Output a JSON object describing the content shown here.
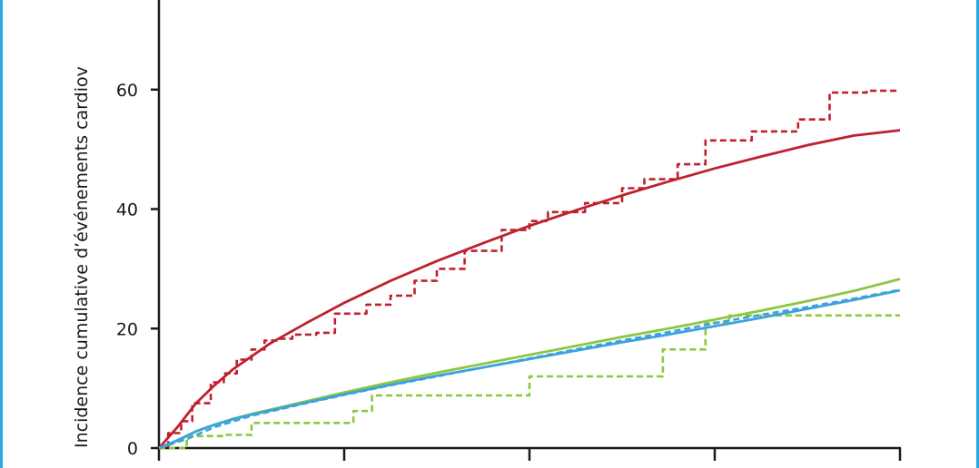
{
  "chart_data": {
    "type": "line",
    "title": "",
    "xlabel": "",
    "ylabel": "Incidence cumulative d’événements cardiov",
    "xlim": [
      0,
      4
    ],
    "ylim": [
      0,
      75
    ],
    "yticks": [
      0,
      20,
      40,
      60
    ],
    "ytick_labels": [
      "0",
      "20",
      "40",
      "60"
    ],
    "xticks": [
      0,
      1,
      2,
      3,
      4
    ],
    "grid": false,
    "legend": "none",
    "series": [
      {
        "style": "solid",
        "color": "#c0202e",
        "x": [
          0,
          0.1,
          0.2,
          0.3,
          0.4,
          0.6,
          0.8,
          1.0,
          1.25,
          1.5,
          1.75,
          2.0,
          2.25,
          2.5,
          2.75,
          3.0,
          3.25,
          3.5,
          3.75,
          4.0
        ],
        "y": [
          0,
          3.5,
          7.5,
          10.5,
          13.2,
          17.5,
          21.0,
          24.3,
          28.0,
          31.3,
          34.3,
          37.2,
          39.8,
          42.3,
          44.6,
          46.8,
          48.8,
          50.7,
          52.3,
          53.2
        ]
      },
      {
        "style": "dashed",
        "color": "#c0202e",
        "x": [
          0,
          0.05,
          0.05,
          0.12,
          0.12,
          0.18,
          0.18,
          0.28,
          0.28,
          0.35,
          0.35,
          0.42,
          0.42,
          0.5,
          0.5,
          0.57,
          0.57,
          0.65,
          0.65,
          0.72,
          0.72,
          0.85,
          0.85,
          0.95,
          0.95,
          1.12,
          1.12,
          1.25,
          1.25,
          1.38,
          1.38,
          1.5,
          1.5,
          1.65,
          1.65,
          1.85,
          1.85,
          2.0,
          2.0,
          2.1,
          2.1,
          2.3,
          2.3,
          2.5,
          2.5,
          2.62,
          2.62,
          2.8,
          2.8,
          2.95,
          2.95,
          3.2,
          3.2,
          3.45,
          3.45,
          3.62,
          3.62,
          3.82,
          3.82,
          4.0
        ],
        "y": [
          0,
          0,
          2.5,
          2.5,
          4.5,
          4.5,
          7.5,
          7.5,
          11.0,
          11.0,
          12.5,
          12.5,
          14.8,
          14.8,
          16.5,
          16.5,
          18.0,
          18.0,
          18.3,
          18.3,
          19.0,
          19.0,
          19.3,
          19.3,
          22.5,
          22.5,
          24.0,
          24.0,
          25.5,
          25.5,
          28.0,
          28.0,
          30.0,
          30.0,
          33.0,
          33.0,
          36.5,
          36.5,
          38.0,
          38.0,
          39.5,
          39.5,
          41.0,
          41.0,
          43.5,
          43.5,
          45.0,
          45.0,
          47.5,
          47.5,
          51.5,
          51.5,
          53.0,
          53.0,
          55.0,
          55.0,
          59.5,
          59.5,
          59.8,
          59.8
        ]
      },
      {
        "style": "solid",
        "color": "#8dc63f",
        "x": [
          0,
          0.1,
          0.2,
          0.3,
          0.4,
          0.5,
          0.75,
          1.0,
          1.25,
          1.5,
          1.75,
          2.0,
          2.25,
          2.5,
          2.75,
          3.0,
          3.25,
          3.5,
          3.75,
          4.0
        ],
        "y": [
          0,
          1.2,
          2.8,
          3.9,
          4.9,
          5.7,
          7.5,
          9.3,
          11.0,
          12.6,
          14.1,
          15.6,
          17.1,
          18.6,
          20.0,
          21.5,
          23.0,
          24.6,
          26.3,
          28.3
        ]
      },
      {
        "style": "dashed",
        "color": "#8dc63f",
        "x": [
          0,
          0.15,
          0.15,
          0.35,
          0.35,
          0.5,
          0.5,
          1.05,
          1.05,
          1.15,
          1.15,
          1.35,
          1.35,
          2.0,
          2.0,
          2.1,
          2.1,
          2.72,
          2.72,
          2.95,
          2.95,
          3.08,
          3.08,
          4.0
        ],
        "y": [
          0,
          0,
          2.0,
          2.0,
          2.2,
          2.2,
          4.2,
          4.2,
          6.2,
          6.2,
          8.8,
          8.8,
          8.8,
          8.8,
          12.0,
          12.0,
          12.0,
          12.0,
          16.5,
          16.5,
          21.0,
          21.0,
          22.2,
          22.2
        ]
      },
      {
        "style": "solid",
        "color": "#3aa3dc",
        "x": [
          0,
          0.1,
          0.2,
          0.3,
          0.4,
          0.5,
          0.75,
          1.0,
          1.25,
          1.5,
          1.75,
          2.0,
          2.25,
          2.5,
          2.75,
          3.0,
          3.25,
          3.5,
          3.75,
          4.0
        ],
        "y": [
          0,
          1.3,
          2.8,
          3.9,
          4.8,
          5.6,
          7.3,
          9.0,
          10.6,
          12.1,
          13.5,
          14.9,
          16.3,
          17.7,
          19.0,
          20.4,
          21.8,
          23.3,
          24.8,
          26.4
        ]
      },
      {
        "style": "dashed",
        "color": "#3aa3dc",
        "x": [
          0,
          0.15,
          0.3,
          0.5,
          0.75,
          1.0,
          1.25,
          1.5,
          1.75,
          2.0,
          2.25,
          2.5,
          2.75,
          3.0,
          3.25,
          3.5,
          3.75,
          4.0
        ],
        "y": [
          0,
          1.5,
          3.5,
          5.4,
          7.2,
          8.9,
          10.5,
          12.0,
          13.5,
          15.0,
          16.5,
          18.0,
          19.4,
          20.9,
          22.3,
          23.6,
          25.0,
          26.5
        ]
      }
    ]
  }
}
